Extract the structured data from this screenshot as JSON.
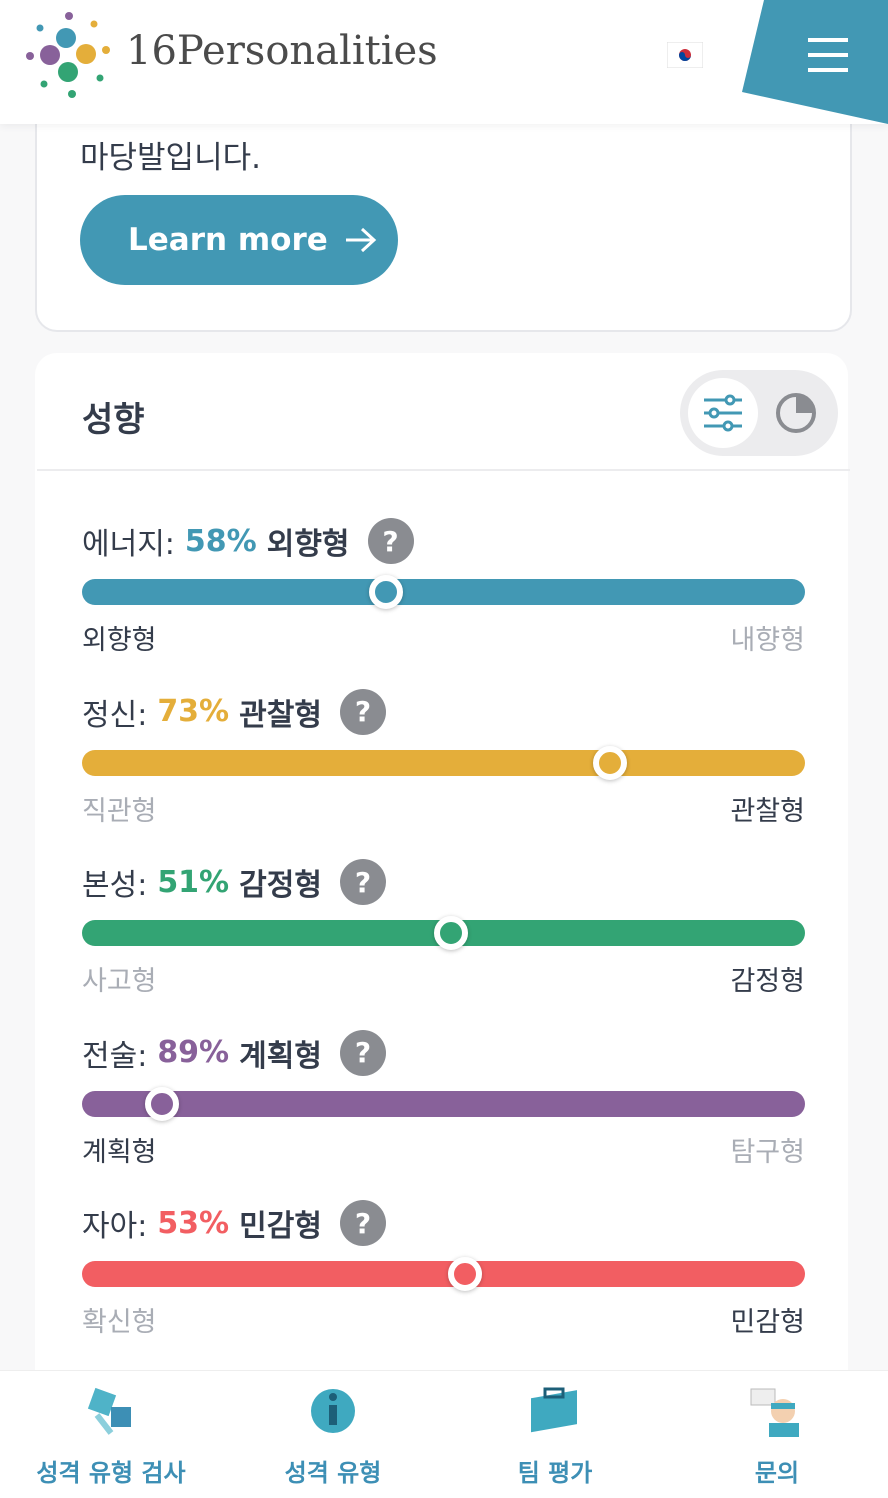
{
  "header": {
    "logo_text": "16Personalities"
  },
  "intro_card": {
    "text": "마당발입니다.",
    "button": "Learn more"
  },
  "traits_card": {
    "title": "성향",
    "help_icon": "?",
    "traits": [
      {
        "label": "에너지:",
        "percent": {
          "value": 58,
          "label": "58%"
        },
        "type": "외향형",
        "left": "외향형",
        "right": "내향형",
        "color": "#4298b4"
      },
      {
        "label": "정신:",
        "percent": {
          "value": 73,
          "label": "73%"
        },
        "type": "관찰형",
        "left": "직관형",
        "right": "관찰형",
        "color": "#e4ae3a"
      },
      {
        "label": "본성:",
        "percent": {
          "value": 51,
          "label": "51%"
        },
        "type": "감정형",
        "left": "사고형",
        "right": "감정형",
        "color": "#33a474"
      },
      {
        "label": "전술:",
        "percent": {
          "value": 89,
          "label": "89%"
        },
        "type": "계획형",
        "left": "계획형",
        "right": "탐구형",
        "color": "#88619a"
      },
      {
        "label": "자아:",
        "percent": {
          "value": 53,
          "label": "53%"
        },
        "type": "민감형",
        "left": "확신형",
        "right": "민감형",
        "color": "#f25e62"
      }
    ]
  },
  "nav": [
    "성격 유형 검사",
    "성격 유형",
    "팀 평가",
    "문의"
  ]
}
